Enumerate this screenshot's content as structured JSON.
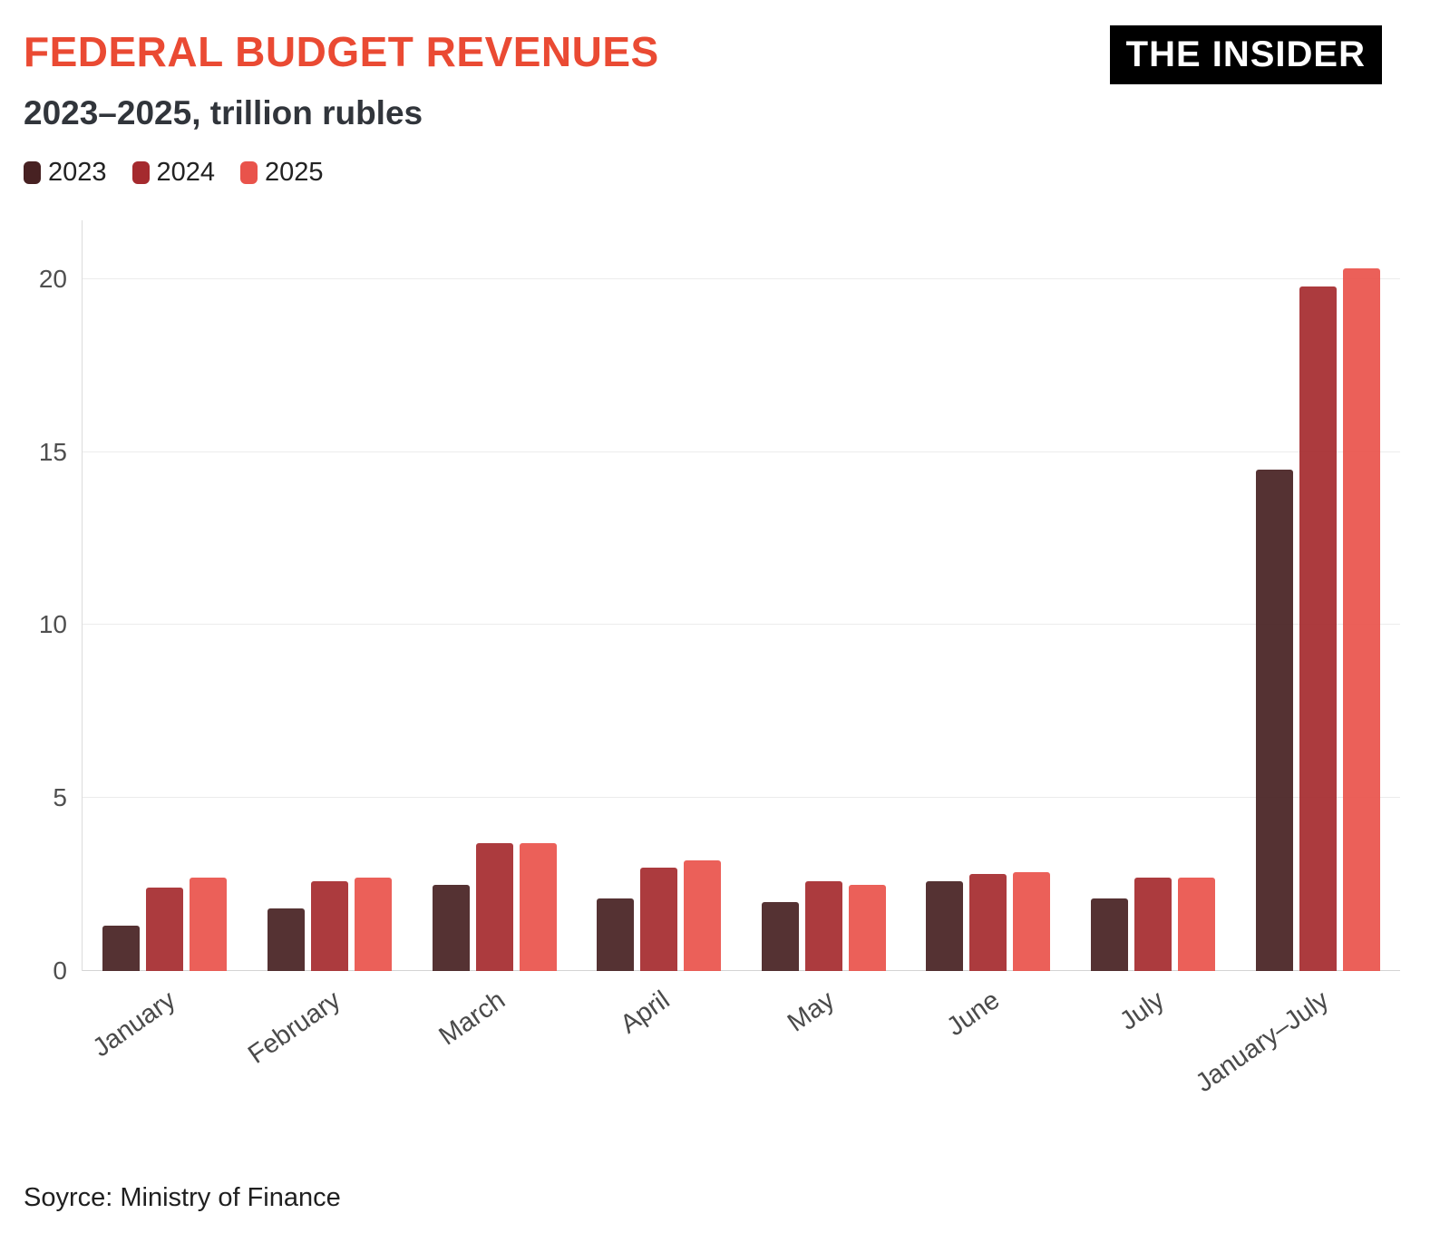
{
  "header": {
    "title": "FEDERAL BUDGET REVENUES",
    "subtitle": "2023–2025, trillion rubles",
    "logo": "THE INSIDER"
  },
  "footer": {
    "source": "Soyrce: Ministry of Finance"
  },
  "colors": {
    "title": "#ea4a33",
    "series_2023": "#472122",
    "series_2024": "#a52a2e",
    "series_2025": "#e9534b"
  },
  "chart_data": {
    "type": "bar",
    "title": "FEDERAL BUDGET REVENUES",
    "subtitle": "2023–2025, trillion rubles",
    "categories": [
      "January",
      "February",
      "March",
      "April",
      "May",
      "June",
      "July",
      "January–July"
    ],
    "series": [
      {
        "name": "2023",
        "color": "#472122",
        "values": [
          1.3,
          1.8,
          2.5,
          2.1,
          2.0,
          2.6,
          2.1,
          14.5
        ]
      },
      {
        "name": "2024",
        "color": "#a52a2e",
        "values": [
          2.4,
          2.6,
          3.7,
          3.0,
          2.6,
          2.8,
          2.7,
          19.8
        ]
      },
      {
        "name": "2025",
        "color": "#e9534b",
        "values": [
          2.7,
          2.7,
          3.7,
          3.2,
          2.5,
          2.85,
          2.7,
          20.3
        ]
      }
    ],
    "xlabel": "",
    "ylabel": "",
    "ylim": [
      0,
      21.7
    ],
    "yticks": [
      0,
      5,
      10,
      15,
      20
    ],
    "grid": true,
    "legend_position": "top-left",
    "source": "Soyrce: Ministry of Finance"
  }
}
